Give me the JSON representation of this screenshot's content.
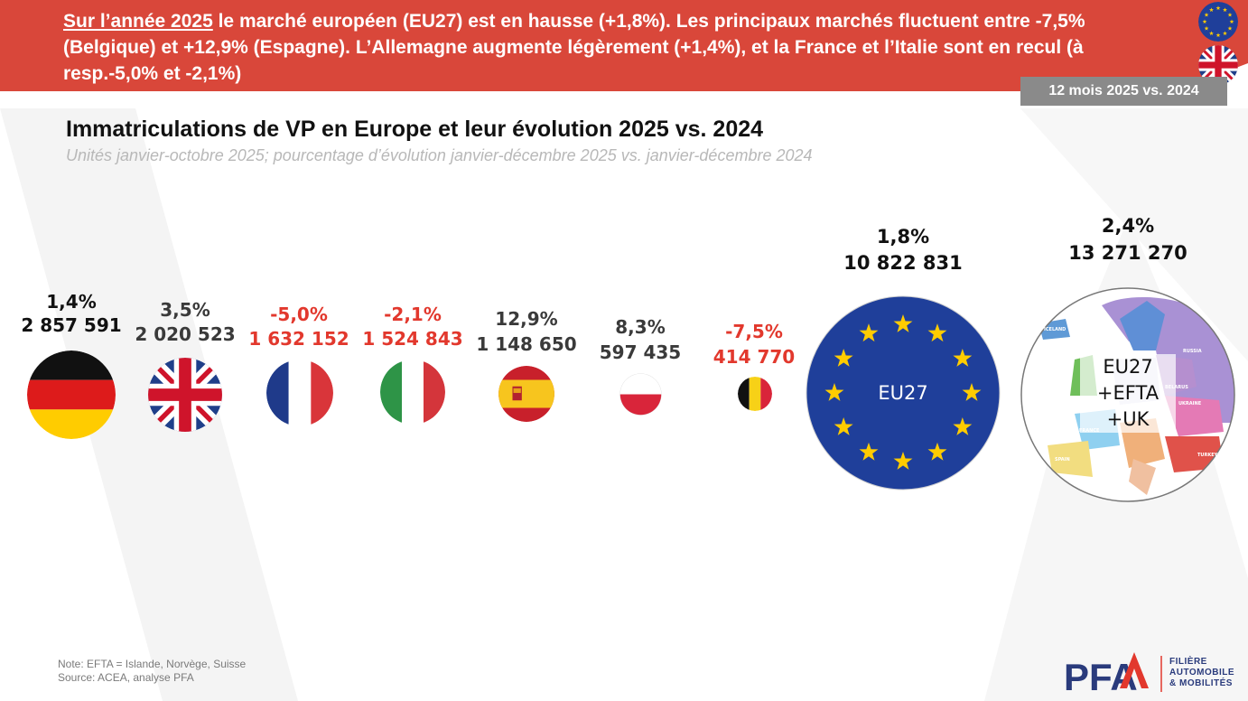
{
  "banner": {
    "lead": "Sur l’année 2025",
    "text": " le marché européen (EU27) est en hausse (+1,8%). Les principaux marchés fluctuent entre -7,5% (Belgique) et +12,9% (Espagne). L’Allemagne augmente légèrement (+1,4%), et la France et l’Italie sont en recul (à resp.-5,0% et -2,1%)"
  },
  "period": "12 mois 2025 vs. 2024",
  "chart_data": {
    "type": "bubble",
    "title": "Immatriculations de VP en Europe et leur évolution 2025 vs. 2024",
    "subtitle": "Unités janvier-octobre 2025; pourcentage d’évolution janvier-décembre 2025 vs. janvier-décembre 2024",
    "categories": [
      "Allemagne",
      "Royaume-Uni",
      "France",
      "Italie",
      "Espagne",
      "Pologne",
      "Belgique",
      "EU27",
      "EU27+EFTA+UK"
    ],
    "labels": [
      {
        "pct": "1,4%",
        "units": "2 857 591"
      },
      {
        "pct": "3,5%",
        "units": "2 020 523"
      },
      {
        "pct": "-5,0%",
        "units": "1 632 152"
      },
      {
        "pct": "-2,1%",
        "units": "1 524 843"
      },
      {
        "pct": "12,9%",
        "units": "1 148 650"
      },
      {
        "pct": "8,3%",
        "units": "597 435"
      },
      {
        "pct": "-7,5%",
        "units": "414 770"
      },
      {
        "pct": "1,8%",
        "units": "10 822 831"
      },
      {
        "pct": "2,4%",
        "units": "13 271 270"
      }
    ],
    "units": [
      2857591,
      2020523,
      1632152,
      1524843,
      1148650,
      597435,
      414770,
      10822831,
      13271270
    ],
    "change_pct": [
      1.4,
      3.5,
      -5.0,
      -2.1,
      12.9,
      8.3,
      -7.5,
      1.8,
      2.4
    ],
    "eu27_label": "EU27",
    "europe_label": [
      "EU27",
      "+EFTA",
      "+UK"
    ],
    "map_labels": [
      "ICELAND",
      "RUSSIA",
      "BELARUS",
      "UKRAINE",
      "FRANCE",
      "SPAIN",
      "TURKEY"
    ]
  },
  "colors": {
    "banner_red": "#d9473a",
    "negative": "#e2382d",
    "eu_blue": "#1f3f9a",
    "eu_star": "#ffcc00",
    "pfa_blue": "#2a3b7c",
    "pfa_red": "#e2382d"
  },
  "note": {
    "line1": "Note: EFTA = Islande, Norvège, Suisse",
    "line2": "Source: ACEA, analyse PFA"
  },
  "logo": {
    "mark": "PFA",
    "line1": "FILIÈRE",
    "line2": "AUTOMOBILE",
    "line3": "& MOBILITÉS"
  }
}
